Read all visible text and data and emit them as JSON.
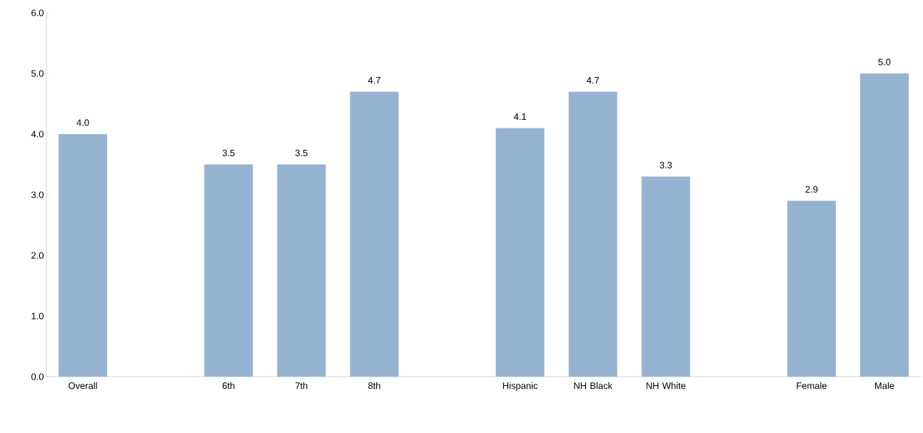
{
  "chart_data": {
    "type": "bar",
    "categories": [
      "Overall",
      null,
      "6th",
      "7th",
      "8th",
      null,
      "Hispanic",
      "NH Black",
      "NH White",
      null,
      "Female",
      "Male"
    ],
    "values": [
      4.0,
      null,
      3.5,
      3.5,
      4.7,
      null,
      4.1,
      4.7,
      3.3,
      null,
      2.9,
      5.0
    ],
    "value_labels": [
      "4.0",
      null,
      "3.5",
      "3.5",
      "4.7",
      null,
      "4.1",
      "4.7",
      "3.3",
      null,
      "2.9",
      "5.0"
    ],
    "color": "#95b3d1",
    "ylim": [
      0,
      6
    ],
    "yticks": [
      {
        "value": 0,
        "label": "0.0"
      },
      {
        "value": 1,
        "label": "1.0"
      },
      {
        "value": 2,
        "label": "2.0"
      },
      {
        "value": 3,
        "label": "3.0"
      },
      {
        "value": 4,
        "label": "4.0"
      },
      {
        "value": 5,
        "label": "5.0"
      },
      {
        "value": 6,
        "label": "6.0"
      }
    ],
    "grid": false
  }
}
